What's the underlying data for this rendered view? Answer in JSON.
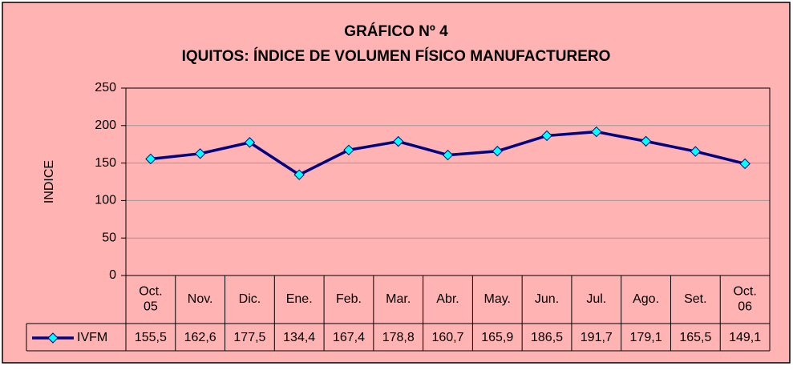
{
  "chart_data": {
    "type": "line",
    "title": "GRÁFICO Nº 4",
    "subtitle": "IQUITOS: ÍNDICE DE VOLUMEN FÍSICO MANUFACTURERO",
    "y_label": "INDICE",
    "categories": [
      "Oct.\n05",
      "Nov.",
      "Dic.",
      "Ene.",
      "Feb.",
      "Mar.",
      "Abr.",
      "May.",
      "Jun.",
      "Jul.",
      "Ago.",
      "Set.",
      "Oct.\n06"
    ],
    "series": [
      {
        "name": "IVFM",
        "color": "#000080",
        "marker_color": "#00ffff",
        "values": [
          155.5,
          162.6,
          177.5,
          134.4,
          167.4,
          178.8,
          160.7,
          165.9,
          186.5,
          191.7,
          179.1,
          165.5,
          149.1
        ],
        "value_labels": [
          "155,5",
          "162,6",
          "177,5",
          "134,4",
          "167,4",
          "178,8",
          "160,7",
          "165,9",
          "186,5",
          "191,7",
          "179,1",
          "165,5",
          "149,1"
        ]
      }
    ],
    "ylim": [
      0,
      250
    ],
    "yticks": [
      0,
      50,
      100,
      150,
      200,
      250
    ],
    "grid": true
  }
}
